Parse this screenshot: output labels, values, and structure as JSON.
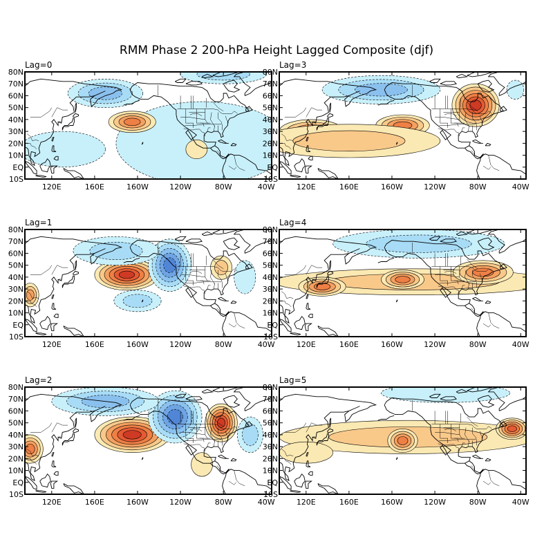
{
  "figure": {
    "title": "RMM Phase 2 200-hPa Height Lagged Composite (djf)",
    "lat_labels": [
      "80N",
      "70N",
      "60N",
      "50N",
      "40N",
      "30N",
      "20N",
      "10N",
      "EQ",
      "10S"
    ],
    "lon_labels": [
      "120E",
      "160E",
      "160W",
      "120W",
      "80W",
      "40W"
    ],
    "colors": {
      "pos": [
        "#fbe9b3",
        "#f9c98a",
        "#f4a060",
        "#ee7f45",
        "#e45a33",
        "#cf3a24"
      ],
      "neg": [
        "#c8f0fb",
        "#a8dcf6",
        "#8ac0ee",
        "#6ea4e3",
        "#5186d6"
      ]
    }
  },
  "panels": [
    {
      "label": "Lag=0",
      "features": [
        {
          "sign": "neg",
          "lon": 170,
          "lat": 62,
          "rx": 35,
          "ry": 12,
          "amp": 3
        },
        {
          "sign": "neg",
          "lon": 280,
          "lat": 78,
          "rx": 40,
          "ry": 8,
          "amp": 2
        },
        {
          "sign": "neg",
          "lon": 260,
          "lat": 20,
          "rx": 80,
          "ry": 35,
          "amp": 1
        },
        {
          "sign": "neg",
          "lon": 130,
          "lat": 15,
          "rx": 40,
          "ry": 15,
          "amp": 1
        },
        {
          "sign": "pos",
          "lon": 195,
          "lat": 38,
          "rx": 22,
          "ry": 9,
          "amp": 4
        },
        {
          "sign": "pos",
          "lon": 255,
          "lat": 15,
          "rx": 10,
          "ry": 8,
          "amp": 1
        }
      ]
    },
    {
      "label": "Lag=3",
      "features": [
        {
          "sign": "neg",
          "lon": 190,
          "lat": 65,
          "rx": 55,
          "ry": 12,
          "amp": 3
        },
        {
          "sign": "neg",
          "lon": 315,
          "lat": 65,
          "rx": 8,
          "ry": 8,
          "amp": 1
        },
        {
          "sign": "pos",
          "lon": 278,
          "lat": 52,
          "rx": 22,
          "ry": 18,
          "amp": 6
        },
        {
          "sign": "pos",
          "lon": 210,
          "lat": 35,
          "rx": 25,
          "ry": 9,
          "amp": 4
        },
        {
          "sign": "pos",
          "lon": 125,
          "lat": 30,
          "rx": 30,
          "ry": 10,
          "amp": 4
        },
        {
          "sign": "pos",
          "lon": 160,
          "lat": 22,
          "rx": 85,
          "ry": 14,
          "amp": 2
        }
      ]
    },
    {
      "label": "Lag=1",
      "features": [
        {
          "sign": "pos",
          "lon": 190,
          "lat": 42,
          "rx": 30,
          "ry": 13,
          "amp": 6
        },
        {
          "sign": "neg",
          "lon": 230,
          "lat": 50,
          "rx": 20,
          "ry": 22,
          "amp": 5
        },
        {
          "sign": "neg",
          "lon": 180,
          "lat": 62,
          "rx": 40,
          "ry": 12,
          "amp": 2
        },
        {
          "sign": "neg",
          "lon": 200,
          "lat": 20,
          "rx": 22,
          "ry": 9,
          "amp": 2
        },
        {
          "sign": "pos",
          "lon": 278,
          "lat": 48,
          "rx": 10,
          "ry": 10,
          "amp": 2
        },
        {
          "sign": "pos",
          "lon": 100,
          "lat": 25,
          "rx": 8,
          "ry": 10,
          "amp": 3
        },
        {
          "sign": "neg",
          "lon": 300,
          "lat": 40,
          "rx": 10,
          "ry": 14,
          "amp": 1
        }
      ]
    },
    {
      "label": "Lag=4",
      "features": [
        {
          "sign": "neg",
          "lon": 225,
          "lat": 68,
          "rx": 80,
          "ry": 12,
          "amp": 2
        },
        {
          "sign": "pos",
          "lon": 220,
          "lat": 36,
          "rx": 130,
          "ry": 11,
          "amp": 2
        },
        {
          "sign": "pos",
          "lon": 210,
          "lat": 38,
          "rx": 20,
          "ry": 8,
          "amp": 4
        },
        {
          "sign": "pos",
          "lon": 135,
          "lat": 32,
          "rx": 22,
          "ry": 8,
          "amp": 4
        },
        {
          "sign": "pos",
          "lon": 285,
          "lat": 44,
          "rx": 28,
          "ry": 10,
          "amp": 4
        }
      ]
    },
    {
      "label": "Lag=2",
      "features": [
        {
          "sign": "pos",
          "lon": 195,
          "lat": 40,
          "rx": 35,
          "ry": 15,
          "amp": 6
        },
        {
          "sign": "neg",
          "lon": 235,
          "lat": 55,
          "rx": 25,
          "ry": 22,
          "amp": 5
        },
        {
          "sign": "neg",
          "lon": 170,
          "lat": 68,
          "rx": 50,
          "ry": 12,
          "amp": 3
        },
        {
          "sign": "pos",
          "lon": 278,
          "lat": 50,
          "rx": 15,
          "ry": 16,
          "amp": 6
        },
        {
          "sign": "pos",
          "lon": 100,
          "lat": 28,
          "rx": 12,
          "ry": 12,
          "amp": 4
        },
        {
          "sign": "neg",
          "lon": 305,
          "lat": 40,
          "rx": 12,
          "ry": 15,
          "amp": 2
        },
        {
          "sign": "pos",
          "lon": 260,
          "lat": 15,
          "rx": 10,
          "ry": 10,
          "amp": 1
        }
      ]
    },
    {
      "label": "Lag=5",
      "features": [
        {
          "sign": "pos",
          "lon": 215,
          "lat": 38,
          "rx": 120,
          "ry": 14,
          "amp": 2
        },
        {
          "sign": "pos",
          "lon": 210,
          "lat": 35,
          "rx": 14,
          "ry": 10,
          "amp": 4
        },
        {
          "sign": "pos",
          "lon": 312,
          "lat": 45,
          "rx": 15,
          "ry": 9,
          "amp": 5
        },
        {
          "sign": "neg",
          "lon": 250,
          "lat": 75,
          "rx": 60,
          "ry": 8,
          "amp": 1
        },
        {
          "sign": "pos",
          "lon": 120,
          "lat": 25,
          "rx": 25,
          "ry": 9,
          "amp": 1
        }
      ]
    }
  ]
}
